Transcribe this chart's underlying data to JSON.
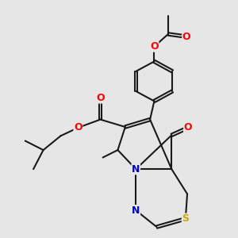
{
  "bg_color": "#e6e6e6",
  "bond_color": "#1a1a1a",
  "bond_width": 1.5,
  "atom_colors": {
    "O": "#ff0000",
    "N": "#0000cd",
    "S": "#ccaa00",
    "C": "#1a1a1a"
  },
  "font_size": 9,
  "dbo": 0.055
}
